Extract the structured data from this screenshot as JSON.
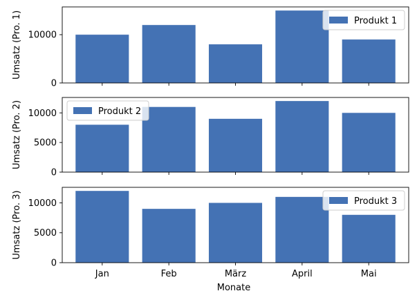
{
  "chart_data": {
    "type": "bar",
    "categories": [
      "Jan",
      "Feb",
      "März",
      "April",
      "Mai"
    ],
    "xlabel": "Monate",
    "bar_color": "#4472b4",
    "panels": [
      {
        "ylabel": "Umsatz (Pro. 1)",
        "legend": "Produkt 1",
        "legend_position": "upper right",
        "values": [
          10000,
          12000,
          8000,
          15000,
          9000
        ],
        "ylim": [
          0,
          15750
        ],
        "yticks": [
          0,
          10000
        ]
      },
      {
        "ylabel": "Umsatz (Pro. 2)",
        "legend": "Produkt 2",
        "legend_position": "upper left",
        "values": [
          8000,
          11000,
          9000,
          12000,
          10000
        ],
        "ylim": [
          0,
          12600
        ],
        "yticks": [
          0,
          5000,
          10000
        ]
      },
      {
        "ylabel": "Umsatz (Pro. 3)",
        "legend": "Produkt 3",
        "legend_position": "upper right",
        "values": [
          12000,
          9000,
          10000,
          11000,
          8000
        ],
        "ylim": [
          0,
          12600
        ],
        "yticks": [
          0,
          5000,
          10000
        ]
      }
    ]
  }
}
